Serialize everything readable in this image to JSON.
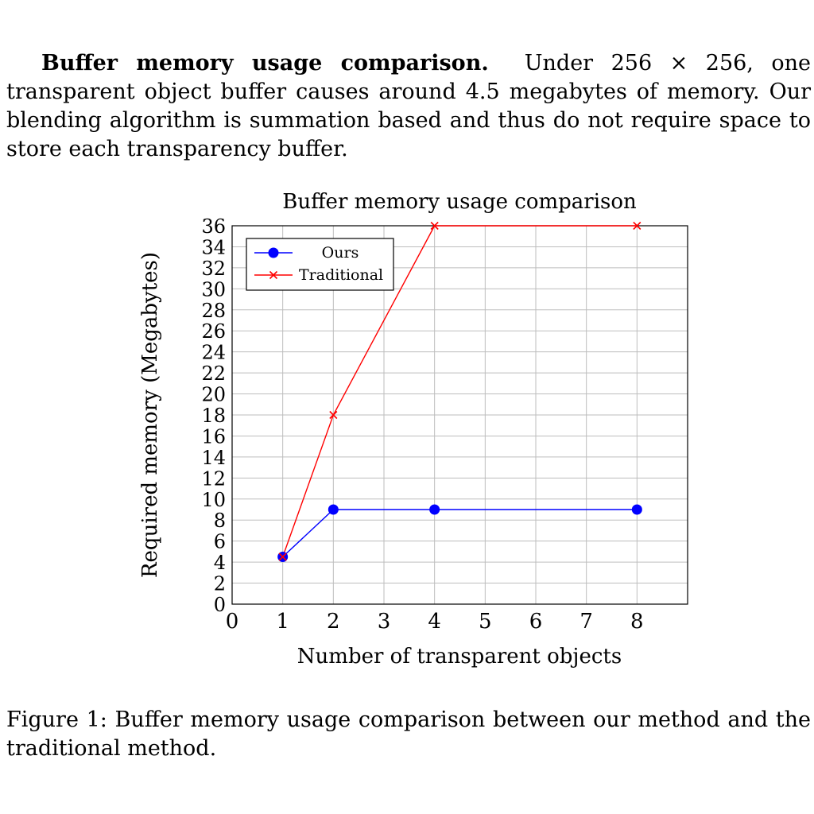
{
  "paragraph": {
    "lead": "Buffer memory usage comparison.",
    "body": "Under 256 × 256, one transparent object buffer causes around 4.5 megabytes of memory. Our blending algorithm is summation based and thus do not require space to store each transparency buffer."
  },
  "caption": "Figure 1: Buffer memory usage comparison between our method and the traditional method.",
  "chart_data": {
    "type": "line",
    "title": "Buffer memory usage comparison",
    "xlabel": "Number of transparent objects",
    "ylabel": "Required memory (Megabytes)",
    "xlim": [
      0,
      9
    ],
    "ylim": [
      0,
      36
    ],
    "x_ticks": [
      "0",
      "1",
      "2",
      "3",
      "4",
      "5",
      "6",
      "7",
      "8"
    ],
    "y_ticks": [
      "0",
      "2",
      "4",
      "6",
      "8",
      "10",
      "12",
      "14",
      "16",
      "18",
      "20",
      "22",
      "24",
      "26",
      "28",
      "30",
      "32",
      "34",
      "36"
    ],
    "grid": true,
    "legend_position": "top-left",
    "series": [
      {
        "name": "Ours",
        "color": "#0000ff",
        "marker": "circle",
        "x": [
          1,
          2,
          4,
          8
        ],
        "y": [
          4.5,
          9,
          9,
          9
        ]
      },
      {
        "name": "Traditional",
        "color": "#ff0000",
        "marker": "x",
        "x": [
          1,
          2,
          4,
          8
        ],
        "y": [
          4.5,
          18,
          36,
          36
        ]
      }
    ]
  }
}
